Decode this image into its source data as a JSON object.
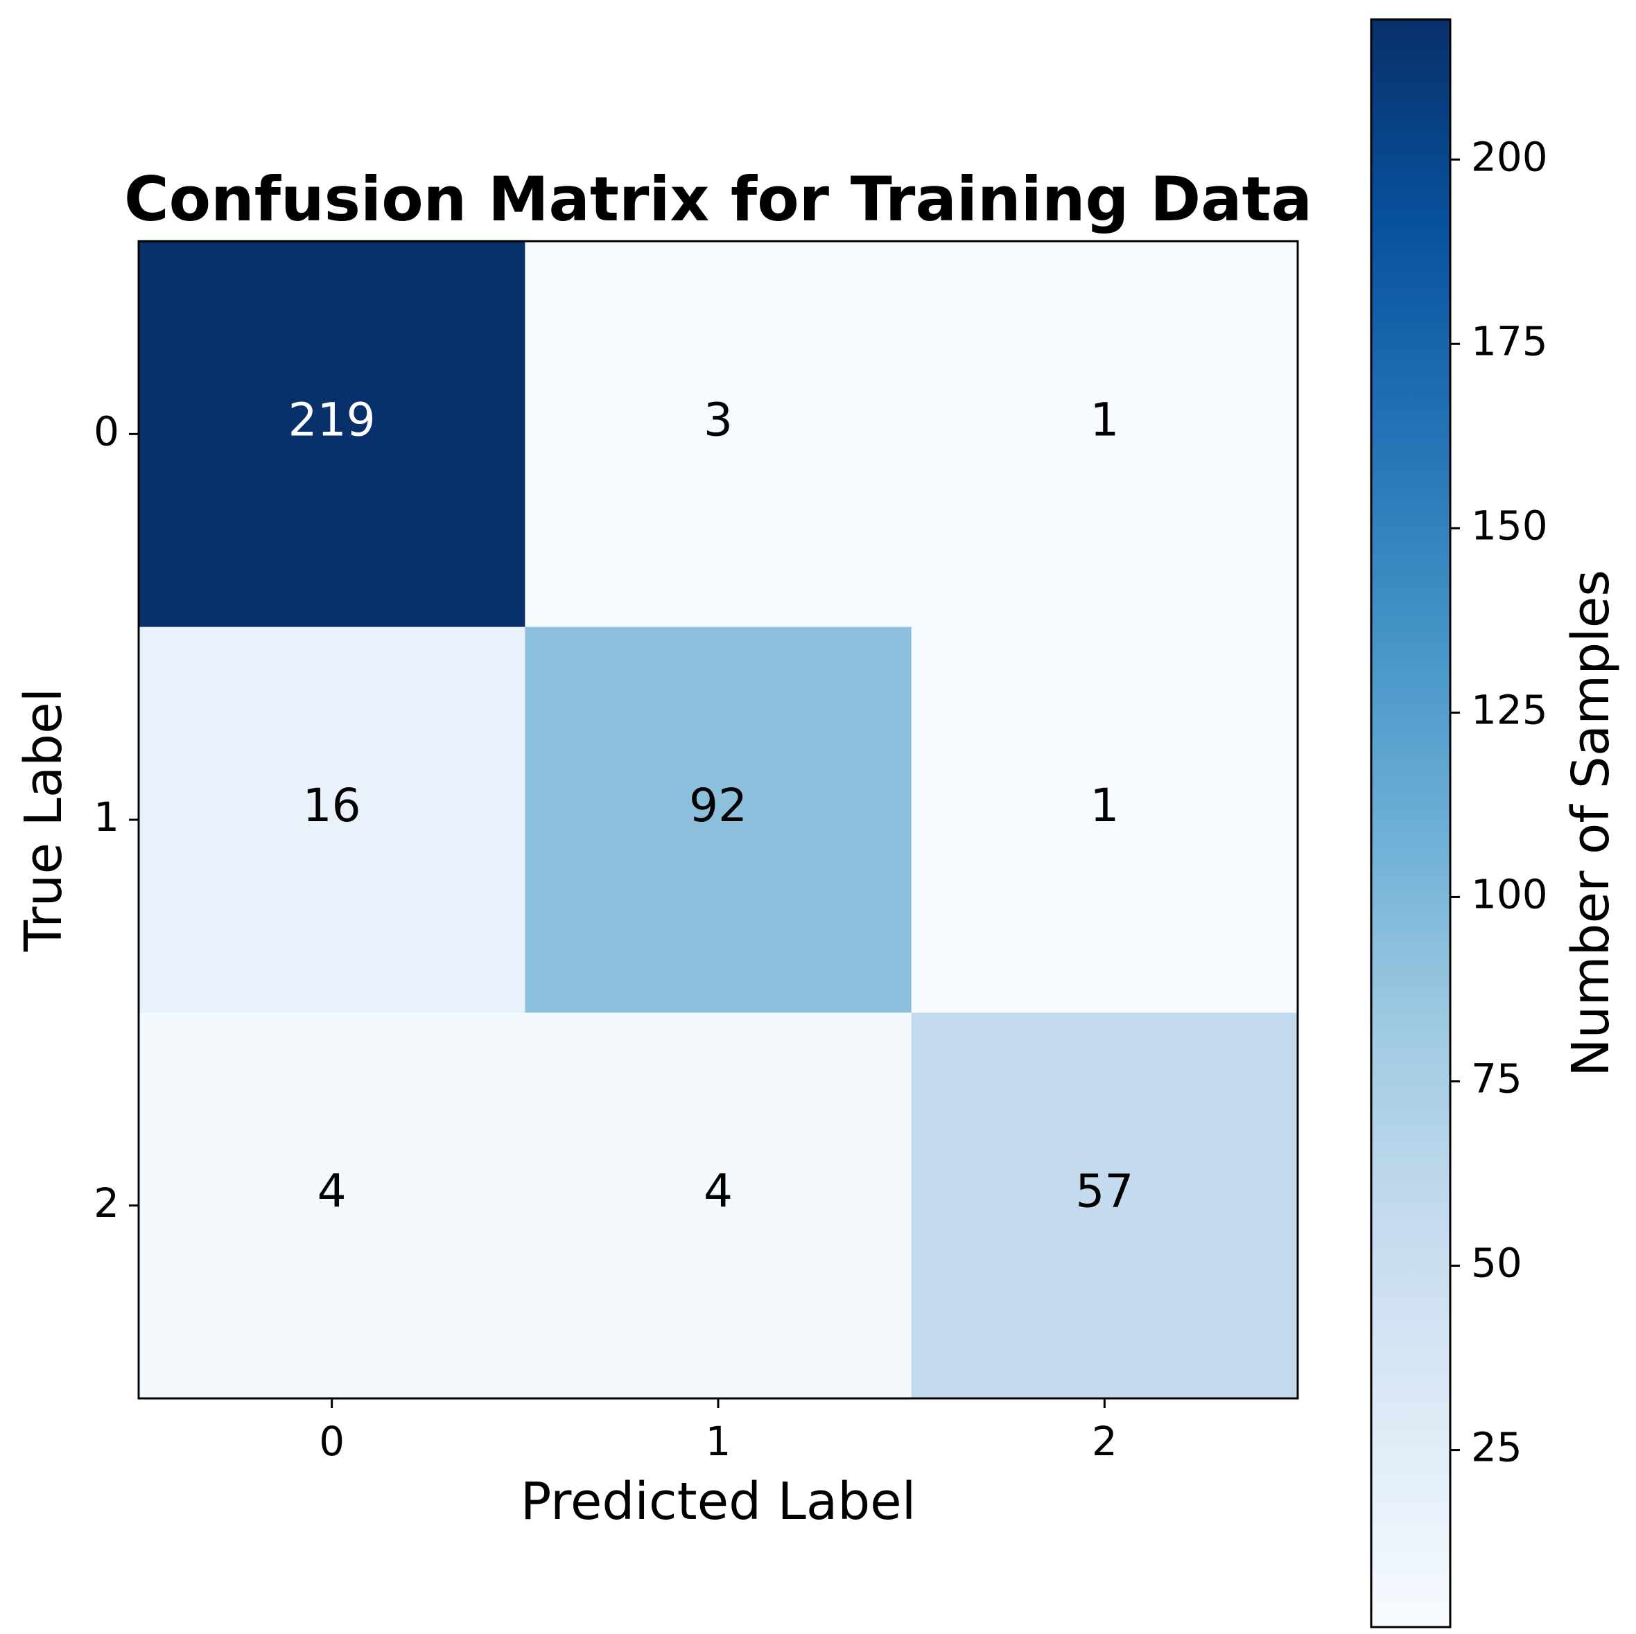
{
  "chart_data": {
    "type": "heatmap",
    "title": "Confusion Matrix for Training Data",
    "xlabel": "Predicted Label",
    "ylabel": "True Label",
    "x_categories": [
      "0",
      "1",
      "2"
    ],
    "y_categories": [
      "0",
      "1",
      "2"
    ],
    "values": [
      [
        219,
        3,
        1
      ],
      [
        16,
        92,
        1
      ],
      [
        4,
        4,
        57
      ]
    ],
    "colormap": "Blues",
    "colorbar": {
      "label": "Number of Samples",
      "range": [
        1,
        219
      ],
      "ticks": [
        25,
        50,
        75,
        100,
        125,
        150,
        175,
        200
      ]
    },
    "colors": {
      "low": "#f7fbff",
      "high": "#08306b",
      "text_dark": "#000000",
      "text_light": "#ffffff"
    }
  }
}
